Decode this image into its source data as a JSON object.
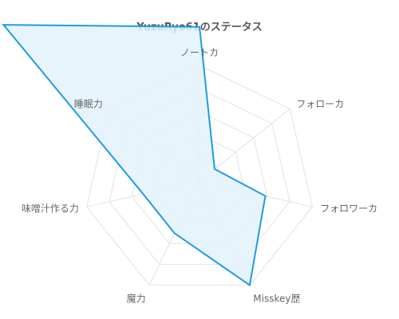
{
  "chart_data": {
    "type": "radar",
    "title": "YuzuRyo61のステータス",
    "axes": [
      "ノートカ",
      "フォローカ",
      "フォロワーカ",
      "Misskey歴",
      "魔力",
      "味噌汁作る力",
      "睡眠力"
    ],
    "series": [
      {
        "values": [
          0.8,
          0.1,
          0.35,
          0.6,
          0.3,
          0.3,
          1.3
        ]
      }
    ],
    "rmax": 0.6,
    "grid_levels": 5,
    "grid": true,
    "colors": {
      "line": "#1e9be6",
      "fill": "#e4f2fc",
      "grid": "#e2e2e2",
      "label": "#666666",
      "title": "#555555"
    }
  }
}
